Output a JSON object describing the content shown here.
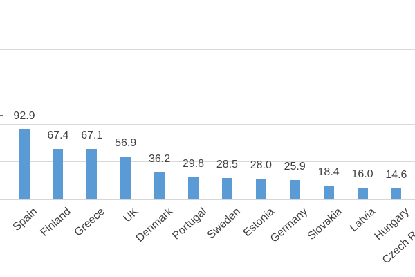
{
  "chart_data": {
    "type": "bar",
    "title": "",
    "xlabel": "",
    "ylabel": "",
    "categories": [
      "Spain",
      "Finland",
      "Greece",
      "UK",
      "Denmark",
      "Portugal",
      "Sweden",
      "Estonia",
      "Germany",
      "Slovakia",
      "Latvia",
      "Hungary",
      "Czech Republic"
    ],
    "values": [
      92.9,
      67.4,
      67.1,
      56.9,
      36.2,
      29.8,
      28.5,
      28.0,
      25.9,
      18.4,
      16.0,
      14.6,
      null
    ],
    "value_labels": [
      "92.9",
      "67.4",
      "67.1",
      "56.9",
      "36.2",
      "29.8",
      "28.5",
      "28.0",
      "25.9",
      "18.4",
      "16.0",
      "14.6",
      ""
    ],
    "series_name": "",
    "legend_visible": false,
    "grid": true,
    "gridline_step": 50,
    "ylim_visible": [
      0,
      250
    ],
    "y_tick_labels_visible": false,
    "x_labels_rotation_deg": -42,
    "bar_color": "#5b9bd5",
    "gridline_color": "#d9d9d9",
    "axis_line_color": "#d6d6d6",
    "label_color": "#404040",
    "crop_note": "chart cropped: no title, no y-axis tick labels; 13th bar and its value cut off at right edge; stray label fragment at left edge"
  }
}
